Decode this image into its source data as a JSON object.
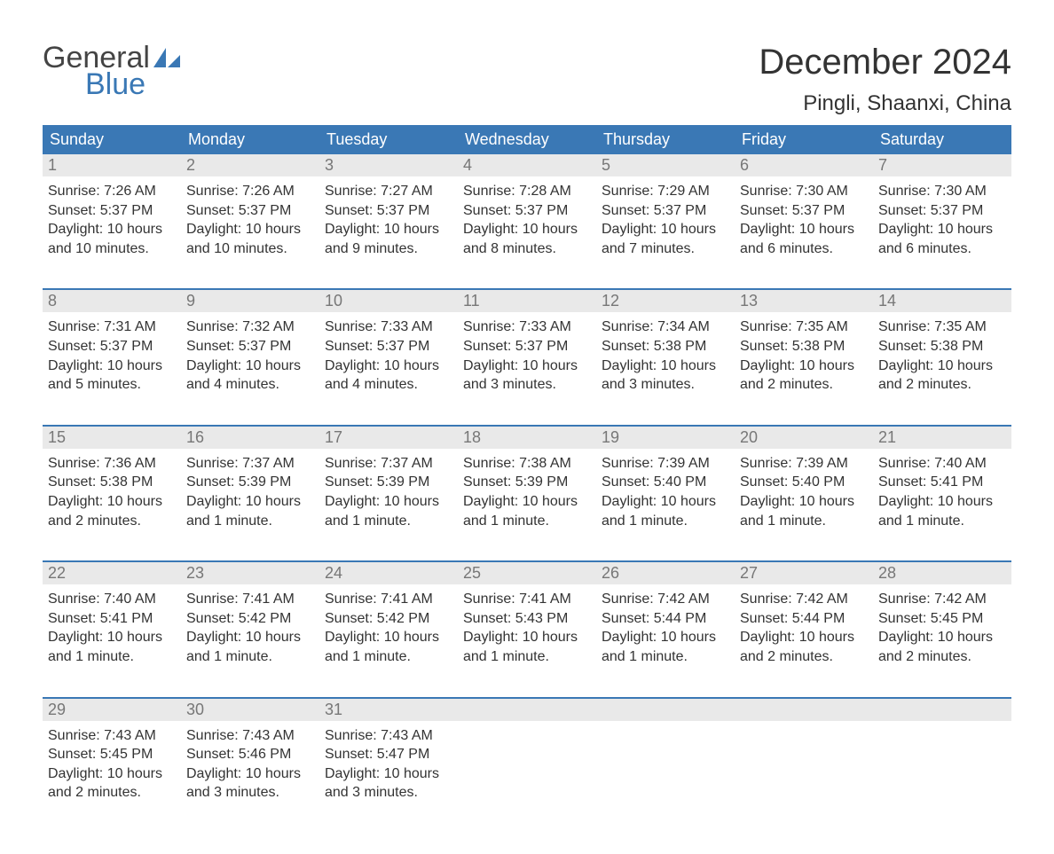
{
  "brand": {
    "text_general": "General",
    "text_blue": "Blue",
    "sail_color": "#3a78b5",
    "general_color": "#444444",
    "blue_color": "#3a78b5"
  },
  "header": {
    "month_title": "December 2024",
    "location": "Pingli, Shaanxi, China"
  },
  "colors": {
    "header_bg": "#3a78b5",
    "header_text": "#ffffff",
    "daynum_bg": "#e9e9e9",
    "daynum_text": "#777777",
    "body_text": "#333333",
    "week_divider": "#3a78b5",
    "page_bg": "#ffffff"
  },
  "weekdays": [
    "Sunday",
    "Monday",
    "Tuesday",
    "Wednesday",
    "Thursday",
    "Friday",
    "Saturday"
  ],
  "weeks": [
    [
      {
        "n": "1",
        "sunrise": "Sunrise: 7:26 AM",
        "sunset": "Sunset: 5:37 PM",
        "day1": "Daylight: 10 hours",
        "day2": "and 10 minutes."
      },
      {
        "n": "2",
        "sunrise": "Sunrise: 7:26 AM",
        "sunset": "Sunset: 5:37 PM",
        "day1": "Daylight: 10 hours",
        "day2": "and 10 minutes."
      },
      {
        "n": "3",
        "sunrise": "Sunrise: 7:27 AM",
        "sunset": "Sunset: 5:37 PM",
        "day1": "Daylight: 10 hours",
        "day2": "and 9 minutes."
      },
      {
        "n": "4",
        "sunrise": "Sunrise: 7:28 AM",
        "sunset": "Sunset: 5:37 PM",
        "day1": "Daylight: 10 hours",
        "day2": "and 8 minutes."
      },
      {
        "n": "5",
        "sunrise": "Sunrise: 7:29 AM",
        "sunset": "Sunset: 5:37 PM",
        "day1": "Daylight: 10 hours",
        "day2": "and 7 minutes."
      },
      {
        "n": "6",
        "sunrise": "Sunrise: 7:30 AM",
        "sunset": "Sunset: 5:37 PM",
        "day1": "Daylight: 10 hours",
        "day2": "and 6 minutes."
      },
      {
        "n": "7",
        "sunrise": "Sunrise: 7:30 AM",
        "sunset": "Sunset: 5:37 PM",
        "day1": "Daylight: 10 hours",
        "day2": "and 6 minutes."
      }
    ],
    [
      {
        "n": "8",
        "sunrise": "Sunrise: 7:31 AM",
        "sunset": "Sunset: 5:37 PM",
        "day1": "Daylight: 10 hours",
        "day2": "and 5 minutes."
      },
      {
        "n": "9",
        "sunrise": "Sunrise: 7:32 AM",
        "sunset": "Sunset: 5:37 PM",
        "day1": "Daylight: 10 hours",
        "day2": "and 4 minutes."
      },
      {
        "n": "10",
        "sunrise": "Sunrise: 7:33 AM",
        "sunset": "Sunset: 5:37 PM",
        "day1": "Daylight: 10 hours",
        "day2": "and 4 minutes."
      },
      {
        "n": "11",
        "sunrise": "Sunrise: 7:33 AM",
        "sunset": "Sunset: 5:37 PM",
        "day1": "Daylight: 10 hours",
        "day2": "and 3 minutes."
      },
      {
        "n": "12",
        "sunrise": "Sunrise: 7:34 AM",
        "sunset": "Sunset: 5:38 PM",
        "day1": "Daylight: 10 hours",
        "day2": "and 3 minutes."
      },
      {
        "n": "13",
        "sunrise": "Sunrise: 7:35 AM",
        "sunset": "Sunset: 5:38 PM",
        "day1": "Daylight: 10 hours",
        "day2": "and 2 minutes."
      },
      {
        "n": "14",
        "sunrise": "Sunrise: 7:35 AM",
        "sunset": "Sunset: 5:38 PM",
        "day1": "Daylight: 10 hours",
        "day2": "and 2 minutes."
      }
    ],
    [
      {
        "n": "15",
        "sunrise": "Sunrise: 7:36 AM",
        "sunset": "Sunset: 5:38 PM",
        "day1": "Daylight: 10 hours",
        "day2": "and 2 minutes."
      },
      {
        "n": "16",
        "sunrise": "Sunrise: 7:37 AM",
        "sunset": "Sunset: 5:39 PM",
        "day1": "Daylight: 10 hours",
        "day2": "and 1 minute."
      },
      {
        "n": "17",
        "sunrise": "Sunrise: 7:37 AM",
        "sunset": "Sunset: 5:39 PM",
        "day1": "Daylight: 10 hours",
        "day2": "and 1 minute."
      },
      {
        "n": "18",
        "sunrise": "Sunrise: 7:38 AM",
        "sunset": "Sunset: 5:39 PM",
        "day1": "Daylight: 10 hours",
        "day2": "and 1 minute."
      },
      {
        "n": "19",
        "sunrise": "Sunrise: 7:39 AM",
        "sunset": "Sunset: 5:40 PM",
        "day1": "Daylight: 10 hours",
        "day2": "and 1 minute."
      },
      {
        "n": "20",
        "sunrise": "Sunrise: 7:39 AM",
        "sunset": "Sunset: 5:40 PM",
        "day1": "Daylight: 10 hours",
        "day2": "and 1 minute."
      },
      {
        "n": "21",
        "sunrise": "Sunrise: 7:40 AM",
        "sunset": "Sunset: 5:41 PM",
        "day1": "Daylight: 10 hours",
        "day2": "and 1 minute."
      }
    ],
    [
      {
        "n": "22",
        "sunrise": "Sunrise: 7:40 AM",
        "sunset": "Sunset: 5:41 PM",
        "day1": "Daylight: 10 hours",
        "day2": "and 1 minute."
      },
      {
        "n": "23",
        "sunrise": "Sunrise: 7:41 AM",
        "sunset": "Sunset: 5:42 PM",
        "day1": "Daylight: 10 hours",
        "day2": "and 1 minute."
      },
      {
        "n": "24",
        "sunrise": "Sunrise: 7:41 AM",
        "sunset": "Sunset: 5:42 PM",
        "day1": "Daylight: 10 hours",
        "day2": "and 1 minute."
      },
      {
        "n": "25",
        "sunrise": "Sunrise: 7:41 AM",
        "sunset": "Sunset: 5:43 PM",
        "day1": "Daylight: 10 hours",
        "day2": "and 1 minute."
      },
      {
        "n": "26",
        "sunrise": "Sunrise: 7:42 AM",
        "sunset": "Sunset: 5:44 PM",
        "day1": "Daylight: 10 hours",
        "day2": "and 1 minute."
      },
      {
        "n": "27",
        "sunrise": "Sunrise: 7:42 AM",
        "sunset": "Sunset: 5:44 PM",
        "day1": "Daylight: 10 hours",
        "day2": "and 2 minutes."
      },
      {
        "n": "28",
        "sunrise": "Sunrise: 7:42 AM",
        "sunset": "Sunset: 5:45 PM",
        "day1": "Daylight: 10 hours",
        "day2": "and 2 minutes."
      }
    ],
    [
      {
        "n": "29",
        "sunrise": "Sunrise: 7:43 AM",
        "sunset": "Sunset: 5:45 PM",
        "day1": "Daylight: 10 hours",
        "day2": "and 2 minutes."
      },
      {
        "n": "30",
        "sunrise": "Sunrise: 7:43 AM",
        "sunset": "Sunset: 5:46 PM",
        "day1": "Daylight: 10 hours",
        "day2": "and 3 minutes."
      },
      {
        "n": "31",
        "sunrise": "Sunrise: 7:43 AM",
        "sunset": "Sunset: 5:47 PM",
        "day1": "Daylight: 10 hours",
        "day2": "and 3 minutes."
      },
      null,
      null,
      null,
      null
    ]
  ]
}
